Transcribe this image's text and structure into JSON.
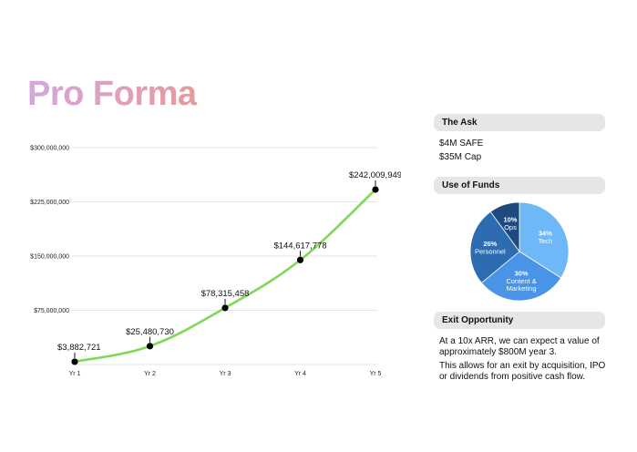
{
  "title": "Pro Forma",
  "chart_data": [
    {
      "type": "line",
      "categories": [
        "Yr 1",
        "Yr 2",
        "Yr 3",
        "Yr 4",
        "Yr 5"
      ],
      "values": [
        3882721,
        25480730,
        78315458,
        144617778,
        242009949
      ],
      "data_labels": [
        "$3,882,721",
        "$25,480,730",
        "$78,315,458",
        "$144,617,778",
        "$242,009,949"
      ],
      "y_ticks": [
        {
          "value": 75000000,
          "label": "$75,000,000"
        },
        {
          "value": 150000000,
          "label": "$150,000,000"
        },
        {
          "value": 225000000,
          "label": "$225,000,000"
        },
        {
          "value": 300000000,
          "label": "$300,000,000"
        }
      ],
      "ylim": [
        0,
        300000000
      ],
      "grid": true,
      "line_color": "#7ed957",
      "marker_color": "#000000",
      "title": "",
      "xlabel": "",
      "ylabel": ""
    },
    {
      "type": "pie",
      "slices": [
        {
          "name": "Tech",
          "value": 34,
          "label": "34%",
          "color": "#6fb8f7"
        },
        {
          "name": "Content & Marketing",
          "value": 30,
          "label": "30%",
          "color": "#4a94e8"
        },
        {
          "name": "Personnel",
          "value": 26,
          "label": "26%",
          "color": "#2d6cb0"
        },
        {
          "name": "Ops",
          "value": 10,
          "label": "10%",
          "color": "#1f4a80"
        }
      ]
    }
  ],
  "sidebar": {
    "ask": {
      "header": "The Ask",
      "lines": [
        "$4M SAFE",
        "$35M Cap"
      ]
    },
    "funds": {
      "header": "Use of Funds"
    },
    "exit": {
      "header": "Exit Opportunity",
      "lines": [
        "At a 10x ARR, we can expect a value of",
        "approximately $800M year 3.",
        "This allows for an exit by acquisition, IPO",
        "or dividends from positive cash flow."
      ]
    }
  }
}
